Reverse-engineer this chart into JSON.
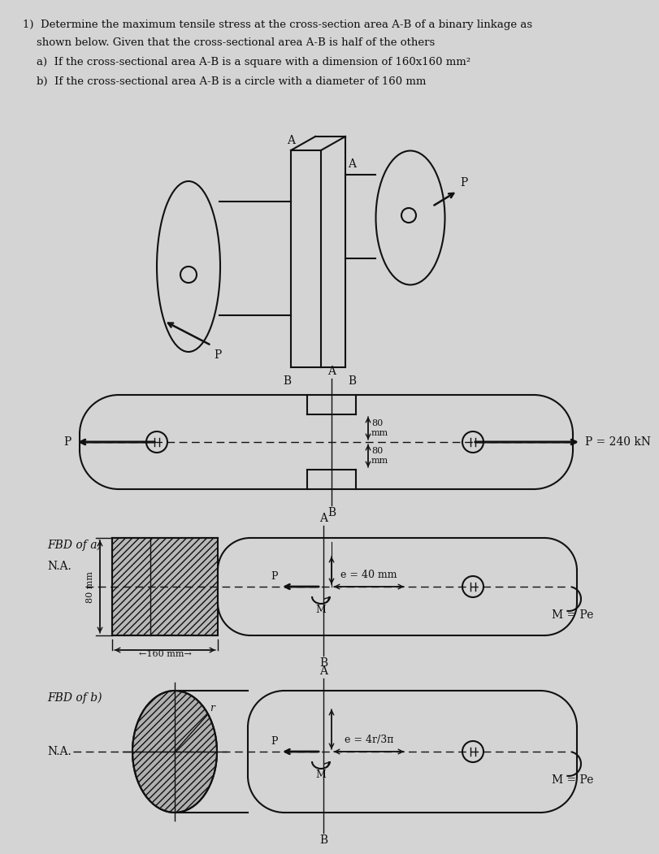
{
  "bg_color": "#d4d4d4",
  "text_color": "#1a1a1a",
  "title_line1": "1)  Determine the maximum tensile stress at the cross-section area A‑B of a binary linkage as",
  "title_line2": "    shown below. Given that the cross-sectional area A‑B is half of the others",
  "item_a": "    a)  If the cross-sectional area A‑B is a square with a dimension of 160x160 mm²",
  "item_b": "    b)  If the cross-sectional area A‑B is a circle with a diameter of 160 mm",
  "p_value": "P = 240 kN",
  "e_40": "e = 40 mm",
  "e_4r": "e = 4r/3π",
  "label_160mm": "←160 mm→",
  "label_80mm": "80 mm",
  "M_Pe": "M = Pe",
  "fbd_a": "FBD of a)",
  "fbd_b": "FBD of b)",
  "na": "N.A.",
  "r_label": "r"
}
